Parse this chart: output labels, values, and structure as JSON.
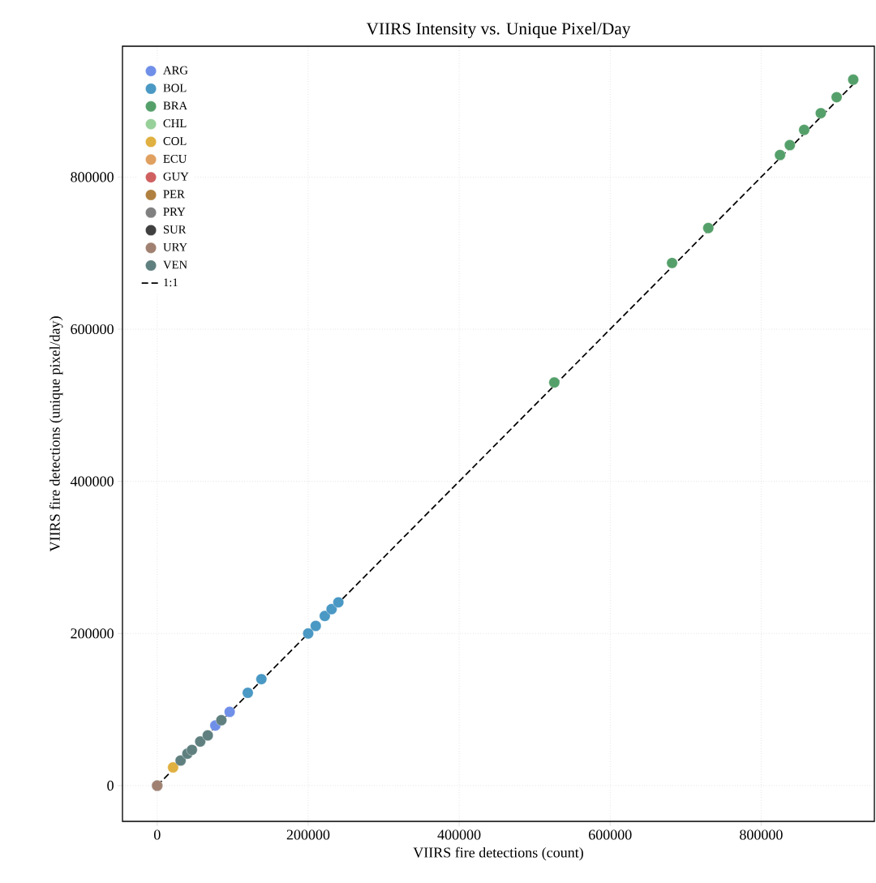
{
  "chart_data": {
    "type": "scatter",
    "title": "VIIRS Intensity vs. Unique Pixel/Day",
    "xlabel": "VIIRS fire detections (count)",
    "ylabel": "VIIRS fire detections (unique pixel/day)",
    "xlim": [
      -46000,
      950000
    ],
    "ylim": [
      -47000,
      972000
    ],
    "xticks": [
      0,
      200000,
      400000,
      600000,
      800000
    ],
    "yticks": [
      0,
      200000,
      400000,
      600000,
      800000
    ],
    "grid": true,
    "legend": "top left",
    "series": [
      {
        "name": "ARG",
        "color": "#6f8fe8",
        "x": [
          77000,
          96000
        ],
        "values": [
          79000,
          97000
        ]
      },
      {
        "name": "BOL",
        "color": "#4a98c4",
        "x": [
          120000,
          138000,
          200000,
          210000,
          222000,
          231000,
          240000
        ],
        "values": [
          122000,
          140000,
          200000,
          210000,
          223000,
          232000,
          241000
        ]
      },
      {
        "name": "BRA",
        "color": "#55a06a",
        "x": [
          526000,
          682000,
          730000,
          825000,
          838000,
          857000,
          879000,
          900000,
          922000
        ],
        "values": [
          530000,
          687000,
          733000,
          829000,
          842000,
          862000,
          884000,
          905000,
          928000
        ]
      },
      {
        "name": "CHL",
        "color": "#98d09a"
      },
      {
        "name": "COL",
        "color": "#e0b040",
        "x": [
          21000
        ],
        "values": [
          24000
        ]
      },
      {
        "name": "ECU",
        "color": "#e0a060"
      },
      {
        "name": "GUY",
        "color": "#d06060"
      },
      {
        "name": "PER",
        "color": "#b08040"
      },
      {
        "name": "PRY",
        "color": "#808080"
      },
      {
        "name": "SUR",
        "color": "#404040",
        "x": [
          0
        ],
        "values": [
          0
        ]
      },
      {
        "name": "URY",
        "color": "#a08070",
        "x": [
          0
        ],
        "values": [
          0
        ]
      },
      {
        "name": "VEN",
        "color": "#608080",
        "x": [
          31000,
          40000,
          46000,
          57000,
          67000,
          85000
        ],
        "values": [
          33000,
          42000,
          47000,
          58000,
          66000,
          86000
        ]
      },
      {
        "name": "1:1",
        "type": "line",
        "line_style": "dashed",
        "marker": "none",
        "color": "#000000",
        "x": [
          0,
          925000
        ],
        "values": [
          0,
          925000
        ]
      }
    ]
  }
}
